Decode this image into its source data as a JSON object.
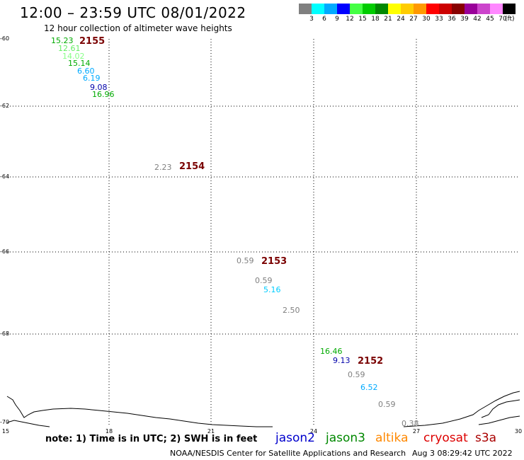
{
  "header": {
    "title": "12:00 – 23:59 UTC 08/01/2022",
    "subtitle": "12 hour collection of altimeter wave heights"
  },
  "colorbar": {
    "colors": [
      "#808080",
      "#00ffff",
      "#00aaff",
      "#0000ff",
      "#44ff44",
      "#00cc00",
      "#008800",
      "#ffff00",
      "#ffcc00",
      "#ff9900",
      "#ff0000",
      "#cc0000",
      "#880000",
      "#990099",
      "#cc44cc",
      "#ff88ff",
      "#000000"
    ],
    "labels": [
      "3",
      "6",
      "9",
      "12",
      "15",
      "18",
      "21",
      "24",
      "27",
      "30",
      "33",
      "36",
      "39",
      "42",
      "45",
      "70"
    ],
    "unit": "(ft)"
  },
  "axes": {
    "lat_labels": [
      "-60",
      "-62",
      "-64",
      "-66",
      "-68",
      "-70"
    ],
    "lon_labels": [
      "15",
      "18",
      "21",
      "24",
      "27",
      "30"
    ]
  },
  "passes": [
    {
      "id": "2155"
    },
    {
      "id": "2154"
    },
    {
      "id": "2153"
    },
    {
      "id": "2152"
    }
  ],
  "wave_heights": [
    {
      "value": "15.23",
      "color": "#00aa00"
    },
    {
      "value": "12.61",
      "color": "#66ee66"
    },
    {
      "value": "14.02",
      "color": "#88ff88"
    },
    {
      "value": "15.14",
      "color": "#00aa00"
    },
    {
      "value": "6.60",
      "color": "#00aaff"
    },
    {
      "value": "6.19",
      "color": "#00aaff"
    },
    {
      "value": "9.08",
      "color": "#0000aa"
    },
    {
      "value": "16.96",
      "color": "#00aa00"
    },
    {
      "value": "2.23",
      "color": "#808080"
    },
    {
      "value": "0.59",
      "color": "#808080"
    },
    {
      "value": "0.59",
      "color": "#808080"
    },
    {
      "value": "5.16",
      "color": "#00ccff"
    },
    {
      "value": "2.50",
      "color": "#808080"
    },
    {
      "value": "16.46",
      "color": "#00aa00"
    },
    {
      "value": "9.13",
      "color": "#0000aa"
    },
    {
      "value": "0.59",
      "color": "#808080"
    },
    {
      "value": "6.52",
      "color": "#00aaff"
    },
    {
      "value": "0.59",
      "color": "#808080"
    },
    {
      "value": "0.38",
      "color": "#808080"
    }
  ],
  "footer": {
    "note": "note: 1) Time is in UTC; 2) SWH is in feet",
    "satellites": [
      {
        "name": "jason2",
        "color": "#0000cc"
      },
      {
        "name": "jason3",
        "color": "#008800"
      },
      {
        "name": "altika",
        "color": "#ff8800"
      },
      {
        "name": "cryosat",
        "color": "#dd0000"
      },
      {
        "name": "s3a",
        "color": "#aa0000"
      }
    ],
    "credit": "NOAA/NESDIS Center for Satellite Applications and Research",
    "timestamp": "Aug  3 08:29:42 UTC 2022"
  }
}
